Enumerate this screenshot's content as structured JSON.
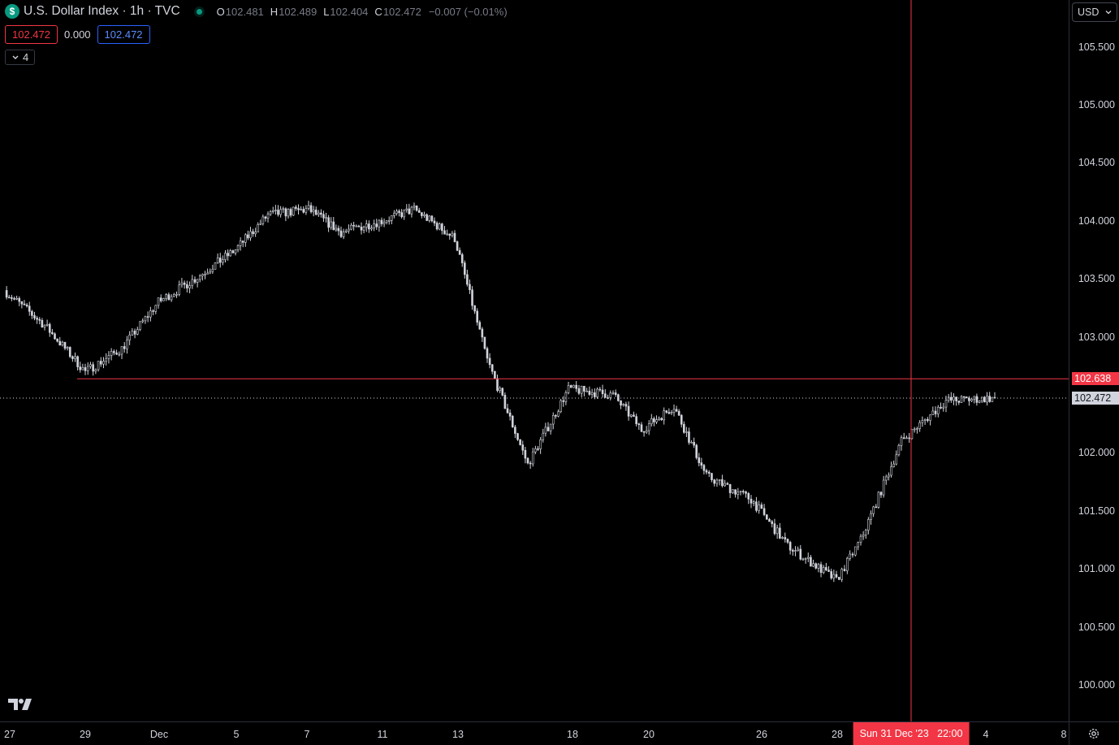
{
  "legend": {
    "symbol_icon": "$",
    "title": "U.S. Dollar Index · 1h · TVC",
    "open_label": "O",
    "open": "102.481",
    "high_label": "H",
    "high": "102.489",
    "low_label": "L",
    "low": "102.404",
    "close_label": "C",
    "close": "102.472",
    "change": "−0.007 (−0.01%)"
  },
  "row2": {
    "sell": "102.472",
    "spread": "0.000",
    "buy": "102.472"
  },
  "indicators": {
    "count": "4"
  },
  "currency": {
    "label": "USD"
  },
  "colors": {
    "up": "#d1d4dc",
    "crosshair": "#f23645",
    "status_dot": "#089981",
    "buy_box": "#2962ff"
  },
  "chart_data": {
    "type": "candlestick",
    "timeframe": "1h",
    "y_ticks": [
      "105.500",
      "105.000",
      "104.500",
      "104.000",
      "103.500",
      "103.000",
      "102.000",
      "101.500",
      "101.000",
      "100.500",
      "100.000"
    ],
    "ylim": [
      99.9,
      105.75
    ],
    "x_tick_labels": [
      "27",
      "29",
      "Dec",
      "5",
      "7",
      "11",
      "13",
      "18",
      "20",
      "26",
      "28",
      "4",
      "8"
    ],
    "series": [
      {
        "date": "Nov 27",
        "close": 103.4
      },
      {
        "date": "Nov 28",
        "close": 103.1
      },
      {
        "date": "Nov 29",
        "close": 102.7
      },
      {
        "date": "Nov 30",
        "close": 102.9
      },
      {
        "date": "Dec 1",
        "close": 103.3
      },
      {
        "date": "Dec 4",
        "close": 103.5
      },
      {
        "date": "Dec 5",
        "close": 103.75
      },
      {
        "date": "Dec 6",
        "close": 104.05
      },
      {
        "date": "Dec 7",
        "close": 104.1
      },
      {
        "date": "Dec 8",
        "close": 103.9
      },
      {
        "date": "Dec 11",
        "close": 104.0
      },
      {
        "date": "Dec 12",
        "close": 104.1
      },
      {
        "date": "Dec 13",
        "close": 103.85
      },
      {
        "date": "Dec 14",
        "close": 102.8
      },
      {
        "date": "Dec 15",
        "close": 101.9
      },
      {
        "date": "Dec 18",
        "close": 102.55
      },
      {
        "date": "Dec 19",
        "close": 102.5
      },
      {
        "date": "Dec 20",
        "close": 102.2
      },
      {
        "date": "Dec 21",
        "close": 102.4
      },
      {
        "date": "Dec 22",
        "close": 101.8
      },
      {
        "date": "Dec 26",
        "close": 101.6
      },
      {
        "date": "Dec 27",
        "close": 101.2
      },
      {
        "date": "Dec 28",
        "close": 100.9
      },
      {
        "date": "Dec 29",
        "close": 101.25
      },
      {
        "date": "Jan 2",
        "close": 102.1
      },
      {
        "date": "Jan 3",
        "close": 102.45
      },
      {
        "date": "Jan 4",
        "close": 102.472
      }
    ],
    "horizontal_line": "102.638",
    "last_price": "102.472",
    "crosshair_time": "Sun 31 Dec '23",
    "crosshair_clock": "22:00"
  }
}
